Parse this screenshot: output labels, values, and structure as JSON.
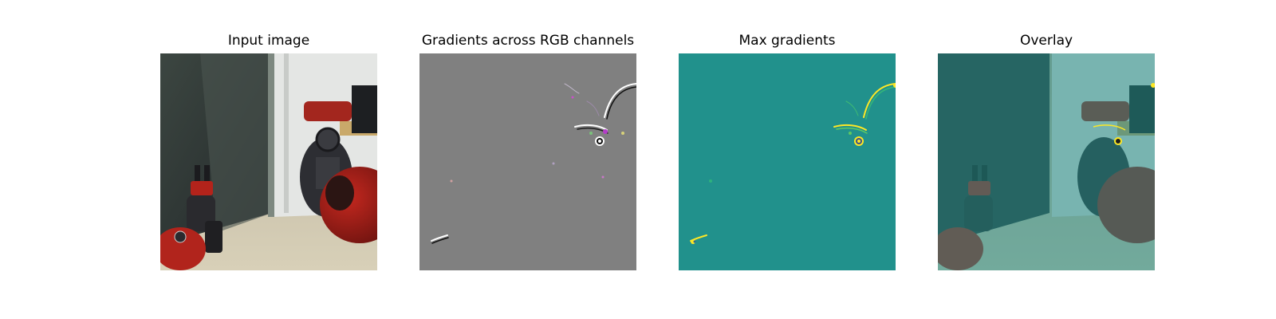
{
  "figure": {
    "panels": [
      {
        "id": "input",
        "title": "Input image"
      },
      {
        "id": "grad-rgb",
        "title": "Gradients across RGB channels"
      },
      {
        "id": "max-grad",
        "title": "Max gradients"
      },
      {
        "id": "overlay",
        "title": "Overlay"
      }
    ]
  },
  "colors": {
    "gray_background": "#808080",
    "viridis_mid": "#21918c",
    "viridis_high": "#fde725",
    "viridis_low": "#440154",
    "overlay_tint": "#1f8a85",
    "robot_red": "#a8201a",
    "robot_dark": "#2c2c30"
  }
}
